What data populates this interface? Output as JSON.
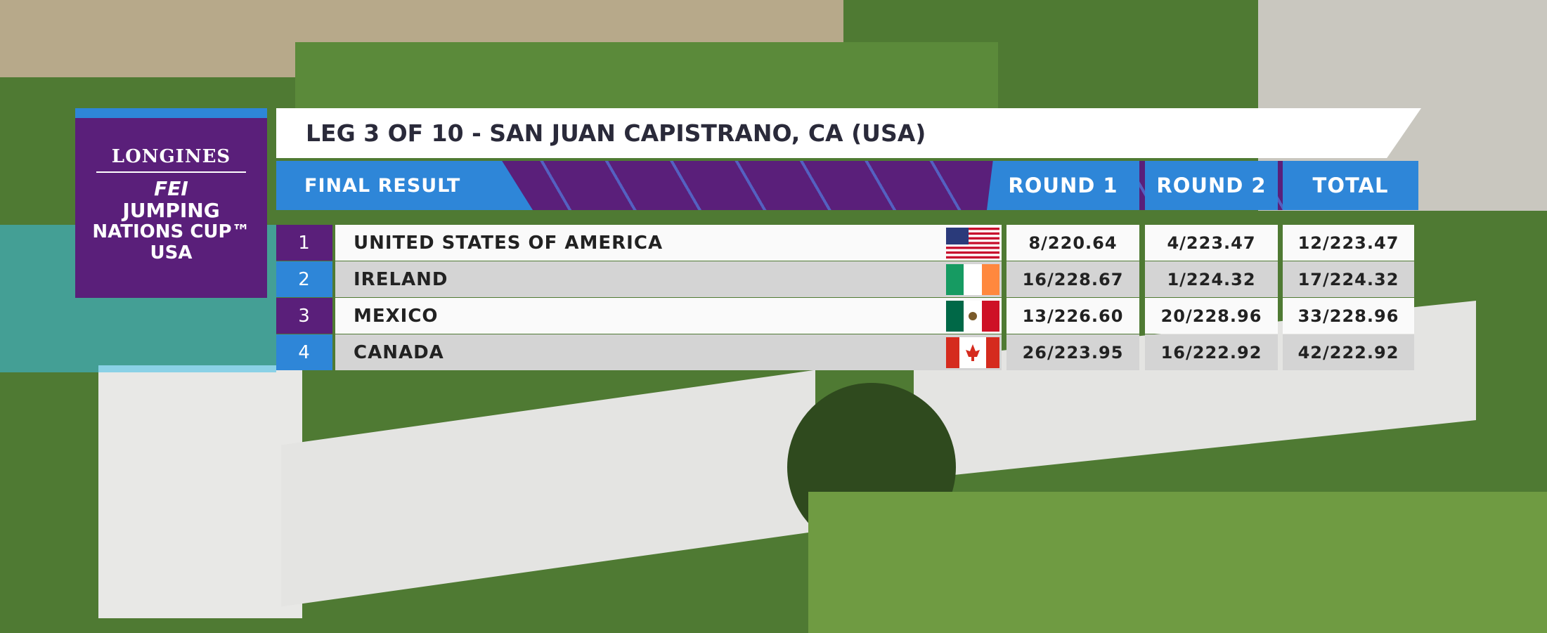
{
  "logo": {
    "brand": "LONGINES",
    "federation": "FEI",
    "line1": "JUMPING",
    "line2": "NATIONS CUP™",
    "country": "USA"
  },
  "header": {
    "title": "LEG 3 OF 10 - SAN JUAN CAPISTRANO, CA (USA)"
  },
  "table": {
    "columns": [
      "FINAL RESULT",
      "ROUND 1",
      "ROUND 2",
      "TOTAL"
    ],
    "rows": [
      [
        1,
        "UNITED STATES OF AMERICA",
        "8/220.64",
        "4/223.47",
        "12/223.47"
      ],
      [
        2,
        "IRELAND",
        "16/228.67",
        "1/224.32",
        "17/224.32"
      ],
      [
        3,
        "MEXICO",
        "13/226.60",
        "20/228.96",
        "33/228.96"
      ],
      [
        4,
        "CANADA",
        "26/223.95",
        "16/222.92",
        "42/222.92"
      ]
    ]
  }
}
